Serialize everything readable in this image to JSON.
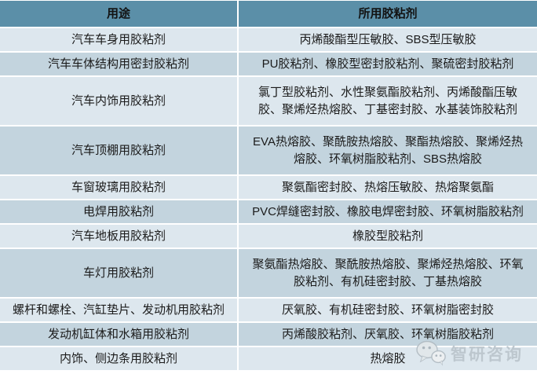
{
  "chart_data": {
    "type": "table",
    "columns": [
      "用途",
      "所用胶粘剂"
    ],
    "rows": [
      {
        "use": "汽车车身用胶粘剂",
        "adhesives": "丙烯酸酯型压敏胶、SBS型压敏胶"
      },
      {
        "use": "汽车车体结构用密封胶粘剂",
        "adhesives": "PU胶粘剂、橡胶型密封胶粘剂、聚硫密封胶粘剂"
      },
      {
        "use": "汽车内饰用胶粘剂",
        "adhesives": "氯丁型胶粘剂、水性聚氨酯胶粘剂、丙烯酸酯压敏胶、聚烯烃热熔胶、丁基密封胶、水基装饰胶粘剂"
      },
      {
        "use": "汽车顶棚用胶粘剂",
        "adhesives": "EVA热熔胶、聚酰胺热熔胶、聚酯热熔胶、聚烯烃热熔胶、环氧树脂胶粘剂、SBS热熔胶"
      },
      {
        "use": "车窗玻璃用胶粘剂",
        "adhesives": "聚氨酯密封胶、热熔压敏胶、热熔聚氨酯"
      },
      {
        "use": "电焊用胶粘剂",
        "adhesives": "PVC焊缝密封胶、橡胶电焊密封胶、环氧树脂胶粘剂"
      },
      {
        "use": "汽车地板用胶粘剂",
        "adhesives": "橡胶型胶粘剂"
      },
      {
        "use": "车灯用胶粘剂",
        "adhesives": "聚氨酯热熔胶、聚酰胺热熔胶、聚烯烃热熔胶、环氧胶粘剂、有机硅密封胶、丁基热熔胶"
      },
      {
        "use": "螺杆和螺栓、汽缸垫片、发动机用胶粘剂",
        "adhesives": "厌氧胶、有机硅密封胶、环氧树脂密封胶"
      },
      {
        "use": "发动机缸体和水箱用胶粘剂",
        "adhesives": "丙烯酸胶粘剂、厌氧胶、环氧树脂胶粘剂"
      },
      {
        "use": "内饰、侧边条用胶粘剂",
        "adhesives": "热熔胶"
      }
    ],
    "layout": {
      "legend": "none",
      "grid": "white 2px separators",
      "header_style": "steel-blue band, bold black text",
      "row_style": "alternating light/dark blue-gray, centered text"
    }
  },
  "colors": {
    "header_bg": "#5b8fa8",
    "row_light": "#dde7ee",
    "row_dark": "#c3d4de",
    "text": "#1b1b1b",
    "watermark": "#bcc6cd"
  },
  "watermark": {
    "text": "智研咨询",
    "icon": "wechat-icon"
  }
}
